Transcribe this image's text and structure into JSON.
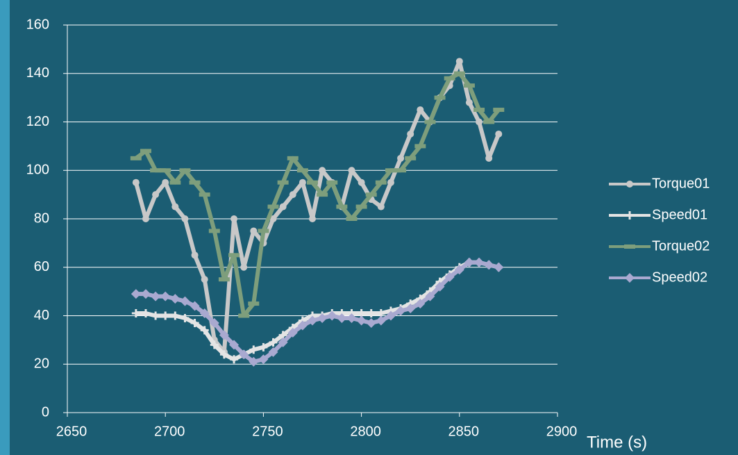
{
  "chart_data": {
    "type": "line",
    "x_label": "Time (s)",
    "x": [
      2685,
      2690,
      2695,
      2700,
      2705,
      2710,
      2715,
      2720,
      2725,
      2730,
      2735,
      2740,
      2745,
      2750,
      2755,
      2760,
      2765,
      2770,
      2775,
      2780,
      2785,
      2790,
      2795,
      2800,
      2805,
      2810,
      2815,
      2820,
      2825,
      2830,
      2835,
      2840,
      2845,
      2850,
      2855,
      2860,
      2865,
      2870
    ],
    "series": [
      {
        "name": "Torque01",
        "color": "#c8c8c8",
        "marker": "circle",
        "values": [
          95,
          80,
          90,
          95,
          85,
          80,
          65,
          55,
          30,
          25,
          80,
          60,
          75,
          70,
          80,
          85,
          90,
          95,
          80,
          100,
          95,
          85,
          100,
          95,
          88,
          85,
          95,
          105,
          115,
          125,
          120,
          130,
          135,
          145,
          128,
          120,
          105,
          115
        ]
      },
      {
        "name": "Speed01",
        "color": "#e4e4e4",
        "marker": "plus",
        "values": [
          41,
          41,
          40,
          40,
          40,
          39,
          37,
          34,
          28,
          24,
          22,
          24,
          26,
          27,
          29,
          32,
          35,
          38,
          40,
          40,
          41,
          41,
          41,
          41,
          41,
          41,
          42,
          43,
          45,
          47,
          50,
          54,
          57,
          60,
          62,
          62,
          61,
          60
        ]
      },
      {
        "name": "Torque02",
        "color": "#7e9e7c",
        "marker": "dash",
        "values": [
          105,
          108,
          100,
          100,
          95,
          100,
          95,
          90,
          75,
          55,
          65,
          40,
          45,
          75,
          85,
          95,
          105,
          100,
          95,
          90,
          95,
          85,
          80,
          85,
          90,
          95,
          100,
          100,
          105,
          110,
          120,
          130,
          138,
          140,
          135,
          125,
          120,
          125
        ]
      },
      {
        "name": "Speed02",
        "color": "#a9a9d0",
        "marker": "diamond",
        "values": [
          49,
          49,
          48,
          48,
          47,
          46,
          44,
          41,
          37,
          32,
          28,
          24,
          21,
          22,
          25,
          29,
          33,
          36,
          38,
          39,
          40,
          39,
          39,
          38,
          37,
          38,
          40,
          42,
          43,
          45,
          48,
          52,
          56,
          59,
          62,
          62,
          61,
          60
        ]
      }
    ],
    "xlim": [
      2650,
      2900
    ],
    "xticks": [
      2650,
      2700,
      2750,
      2800,
      2850,
      2900
    ],
    "ylim": [
      0,
      160
    ],
    "yticks": [
      0,
      20,
      40,
      60,
      80,
      100,
      120,
      140,
      160
    ],
    "grid": true,
    "legend": "right"
  }
}
